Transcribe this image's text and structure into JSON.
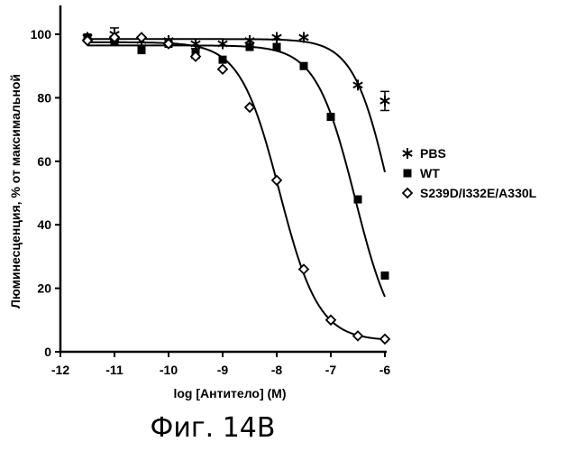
{
  "caption": "Фиг. 14B",
  "chart_data": {
    "type": "scatter",
    "title": "",
    "xlabel": "log [Антитело] (M)",
    "ylabel": "Люминесценция, % от максимальной",
    "xlim": [
      -12,
      -6
    ],
    "ylim": [
      0,
      100
    ],
    "x_ticks": [
      -12,
      -11,
      -10,
      -9,
      -8,
      -7,
      -6
    ],
    "y_ticks": [
      0,
      20,
      40,
      60,
      80,
      100
    ],
    "x_tick_labels": [
      "-12",
      "-11",
      "-10",
      "-9",
      "-8",
      "-7",
      "-6"
    ],
    "y_tick_labels": [
      "0",
      "20",
      "40",
      "60",
      "80",
      "100"
    ],
    "legend_position": "right",
    "series": [
      {
        "name": "PBS",
        "marker": "asterisk",
        "x": [
          -11.5,
          -11,
          -10.5,
          -10,
          -9.5,
          -9,
          -8.5,
          -8,
          -7.5,
          -6.5,
          -6
        ],
        "y": [
          99,
          100,
          98,
          98,
          97,
          97,
          98,
          99,
          99,
          84,
          79
        ],
        "fit": {
          "bottom": 0,
          "top": 98.5,
          "logEC50": -5.9,
          "hill": 1.3
        }
      },
      {
        "name": "WT",
        "marker": "filled-square",
        "x": [
          -11.5,
          -11,
          -10.5,
          -10,
          -9.5,
          -9,
          -8.5,
          -8,
          -7.5,
          -7,
          -6.5,
          -6
        ],
        "y": [
          99,
          98,
          95,
          97,
          94,
          92,
          96,
          96,
          90,
          74,
          48,
          24
        ],
        "fit": {
          "bottom": 0,
          "top": 96.5,
          "logEC50": -6.55,
          "hill": 1.2
        }
      },
      {
        "name": "S239D/I332E/A330L",
        "marker": "open-diamond",
        "x": [
          -11.5,
          -11,
          -10.5,
          -10,
          -9.5,
          -9,
          -8.5,
          -8,
          -7.5,
          -7,
          -6.5,
          -6
        ],
        "y": [
          98,
          99,
          99,
          97,
          93,
          89,
          77,
          54,
          26,
          10,
          5,
          4
        ],
        "fit": {
          "bottom": 3.5,
          "top": 97.5,
          "logEC50": -7.95,
          "hill": 1.2
        }
      }
    ]
  }
}
